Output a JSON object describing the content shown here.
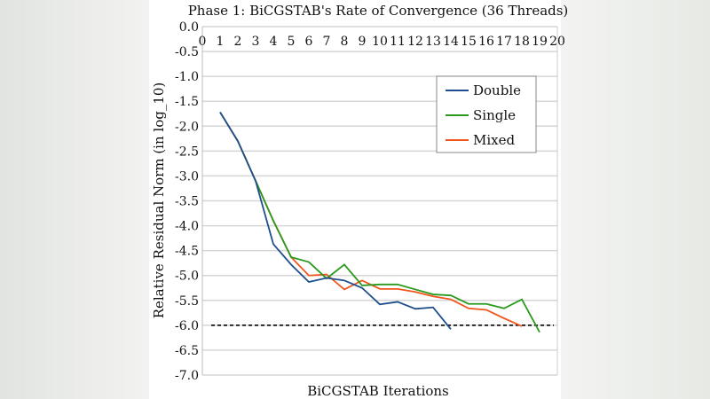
{
  "chart_data": {
    "type": "line",
    "title": "Phase 1: BiCGSTAB's Rate of Convergence (36 Threads)",
    "xlabel": "BiCGSTAB Iterations",
    "ylabel": "Relative Residual Norm (in log_10)",
    "xlim": [
      0,
      20
    ],
    "ylim": [
      -7.0,
      0.0
    ],
    "xticks": [
      "0",
      "1",
      "2",
      "3",
      "4",
      "5",
      "6",
      "7",
      "8",
      "9",
      "10",
      "11",
      "12",
      "13",
      "14",
      "15",
      "16",
      "17",
      "18",
      "19",
      "20"
    ],
    "yticks": [
      "0.0",
      "-0.5",
      "-1.0",
      "-1.5",
      "-2.0",
      "-2.5",
      "-3.0",
      "-3.5",
      "-4.0",
      "-4.5",
      "-5.0",
      "-5.5",
      "-6.0",
      "-6.5",
      "-7.0"
    ],
    "grid": "horizontal",
    "legend_position": "top-right",
    "threshold": -6.0,
    "series": [
      {
        "name": "Double",
        "color": "#1f4e8c",
        "x": [
          1,
          2,
          3,
          4,
          5,
          6,
          7,
          8,
          9,
          10,
          11,
          12,
          13,
          14
        ],
        "y": [
          -1.72,
          -2.3,
          -3.1,
          -4.37,
          -4.78,
          -5.13,
          -5.05,
          -5.1,
          -5.25,
          -5.58,
          -5.53,
          -5.67,
          -5.64,
          -6.08
        ]
      },
      {
        "name": "Single",
        "color": "#2a9a1e",
        "x": [
          1,
          2,
          3,
          4,
          5,
          6,
          7,
          8,
          9,
          10,
          11,
          12,
          13,
          14,
          15,
          16,
          17,
          18,
          19
        ],
        "y": [
          -1.72,
          -2.3,
          -3.1,
          -3.9,
          -4.63,
          -4.73,
          -5.06,
          -4.78,
          -5.2,
          -5.18,
          -5.18,
          -5.28,
          -5.38,
          -5.4,
          -5.57,
          -5.57,
          -5.66,
          -5.48,
          -6.14
        ]
      },
      {
        "name": "Mixed",
        "color": "#f0561d",
        "x": [
          1,
          2,
          3,
          4,
          5,
          6,
          7,
          8,
          9,
          10,
          11,
          12,
          13,
          14,
          15,
          16,
          17,
          18
        ],
        "y": [
          -1.72,
          -2.3,
          -3.1,
          -3.9,
          -4.63,
          -5.0,
          -4.98,
          -5.28,
          -5.1,
          -5.27,
          -5.27,
          -5.33,
          -5.42,
          -5.48,
          -5.66,
          -5.69,
          -5.86,
          -6.02
        ]
      }
    ]
  }
}
